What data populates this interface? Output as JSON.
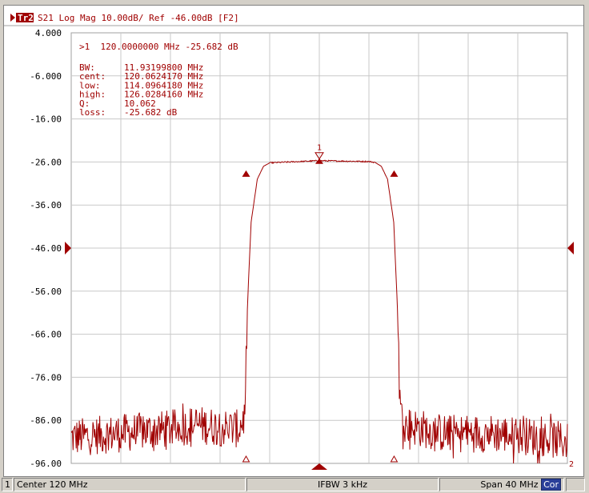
{
  "trace": {
    "tag": "Tr2",
    "header": "S21 Log Mag 10.00dB/ Ref -46.00dB [F2]",
    "color": "#a00000",
    "ref_level": "-46.00"
  },
  "marker_readout": {
    "line": ">1  120.0000000 MHz -25.682 dB",
    "stats": [
      {
        "label": "  BW:",
        "value": "11.93199800 MHz"
      },
      {
        "label": "cent:",
        "value": "120.0624170 MHz"
      },
      {
        "label": " low:",
        "value": "114.0964180 MHz"
      },
      {
        "label": "high:",
        "value": "126.0284160 MHz"
      },
      {
        "label": "   Q:",
        "value": "10.062"
      },
      {
        "label": "loss:",
        "value": "-25.682 dB"
      }
    ]
  },
  "chart_data": {
    "type": "line",
    "x_unit": "MHz",
    "xlim": [
      100,
      140
    ],
    "ylim": [
      -96,
      4
    ],
    "ytick_labels": [
      "4.000",
      "-6.000",
      "-16.00",
      "-26.00",
      "-36.00",
      "-46.00",
      "-56.00",
      "-66.00",
      "-76.00",
      "-86.00",
      "-96.00"
    ],
    "grid": true,
    "series": [
      {
        "points": [
          [
            100,
            -90
          ],
          [
            104,
            -89
          ],
          [
            108,
            -88
          ],
          [
            110,
            -87
          ],
          [
            113.5,
            -88
          ],
          [
            114.0,
            -85
          ],
          [
            114.2,
            -60
          ],
          [
            114.5,
            -40
          ],
          [
            115,
            -30
          ],
          [
            115.5,
            -27
          ],
          [
            116,
            -26.2
          ],
          [
            120,
            -25.7
          ],
          [
            124,
            -25.9
          ],
          [
            124.5,
            -26.1
          ],
          [
            125,
            -27
          ],
          [
            125.5,
            -30
          ],
          [
            126,
            -40
          ],
          [
            126.3,
            -60
          ],
          [
            126.5,
            -82
          ],
          [
            126.8,
            -87
          ],
          [
            130,
            -89
          ],
          [
            134,
            -89
          ],
          [
            138,
            -90
          ],
          [
            140,
            -91
          ]
        ]
      }
    ],
    "markers": [
      {
        "label": "1",
        "x": 120.0,
        "y": -25.682
      }
    ],
    "stat_markers_y": [
      {
        "x": 114.0964,
        "y": -28.7
      },
      {
        "x": 126.0284,
        "y": -28.7
      }
    ],
    "trace_end_label": "2"
  },
  "statusbar": {
    "channel": "1",
    "center": "Center 120 MHz",
    "ifbw": "IFBW 3 kHz",
    "span": "Span 40 MHz",
    "cor": "Cor"
  }
}
